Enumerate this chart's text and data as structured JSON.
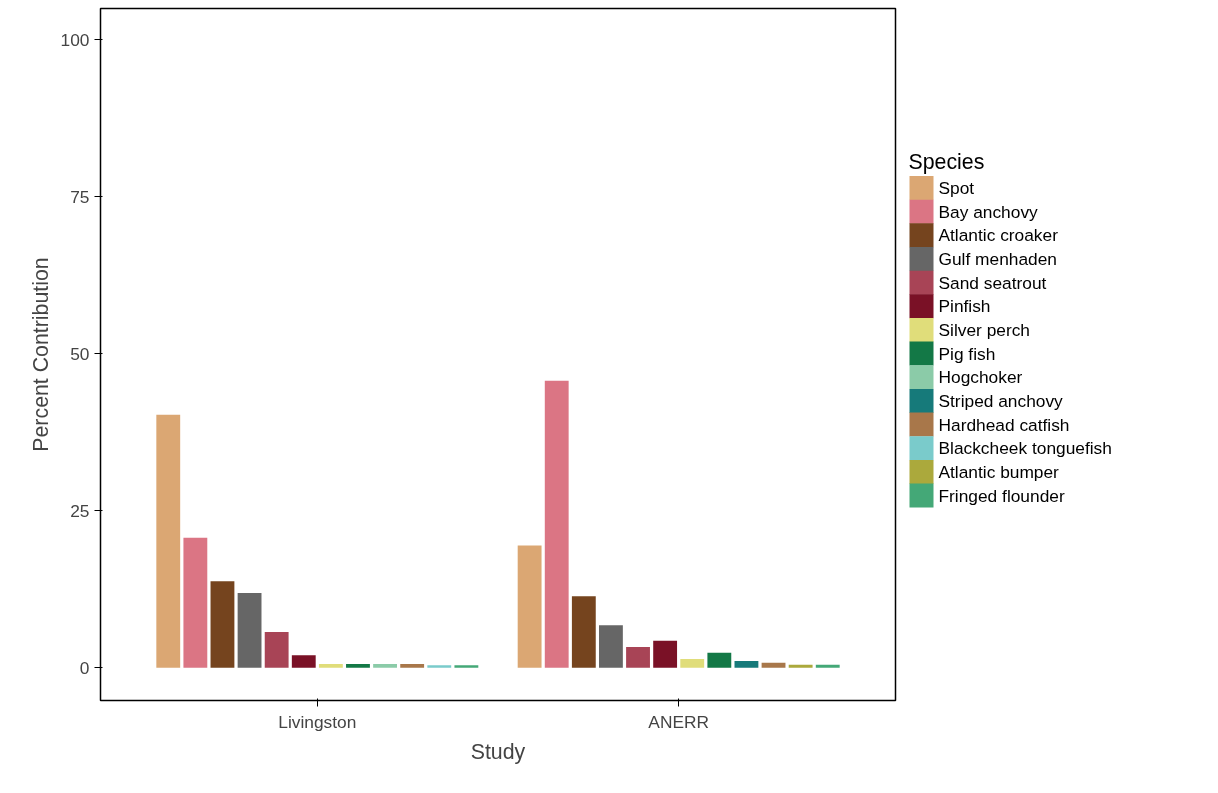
{
  "chart_data": {
    "type": "bar",
    "xlabel": "Study",
    "ylabel": "Percent Contribution",
    "legend_title": "Species",
    "categories": [
      "Livingston",
      "ANERR"
    ],
    "series": [
      {
        "name": "Spot",
        "color": "#dba773",
        "values": [
          40.3,
          19.5
        ]
      },
      {
        "name": "Bay anchovy",
        "color": "#db7584",
        "values": [
          20.7,
          45.7
        ]
      },
      {
        "name": "Atlantic croaker",
        "color": "#75441e",
        "values": [
          13.8,
          11.4
        ]
      },
      {
        "name": "Gulf menhaden",
        "color": "#666666",
        "values": [
          11.9,
          6.8
        ]
      },
      {
        "name": "Sand seatrout",
        "color": "#a84456",
        "values": [
          5.7,
          3.3
        ]
      },
      {
        "name": "Pinfish",
        "color": "#7a1126",
        "values": [
          2.0,
          4.3
        ]
      },
      {
        "name": "Silver perch",
        "color": "#e0dd7a",
        "values": [
          0.6,
          1.4
        ]
      },
      {
        "name": "Pig fish",
        "color": "#137846",
        "values": [
          0.6,
          2.4
        ]
      },
      {
        "name": "Hogchoker",
        "color": "#8bcba8",
        "values": [
          0.6,
          null
        ]
      },
      {
        "name": "Striped anchovy",
        "color": "#167a7a",
        "values": [
          null,
          1.1
        ]
      },
      {
        "name": "Hardhead catfish",
        "color": "#a8774a",
        "values": [
          0.6,
          0.8
        ]
      },
      {
        "name": "Blackcheek tonguefish",
        "color": "#7acbcb",
        "values": [
          0.4,
          null
        ]
      },
      {
        "name": "Atlantic bumper",
        "color": "#aba93c",
        "values": [
          null,
          0.5
        ]
      },
      {
        "name": "Fringed flounder",
        "color": "#44a877",
        "values": [
          0.4,
          0.5
        ]
      }
    ],
    "ylim": [
      -5.2,
      105
    ],
    "yticks": [
      0,
      25,
      50,
      75,
      100
    ],
    "grid": false,
    "legend": "right"
  }
}
